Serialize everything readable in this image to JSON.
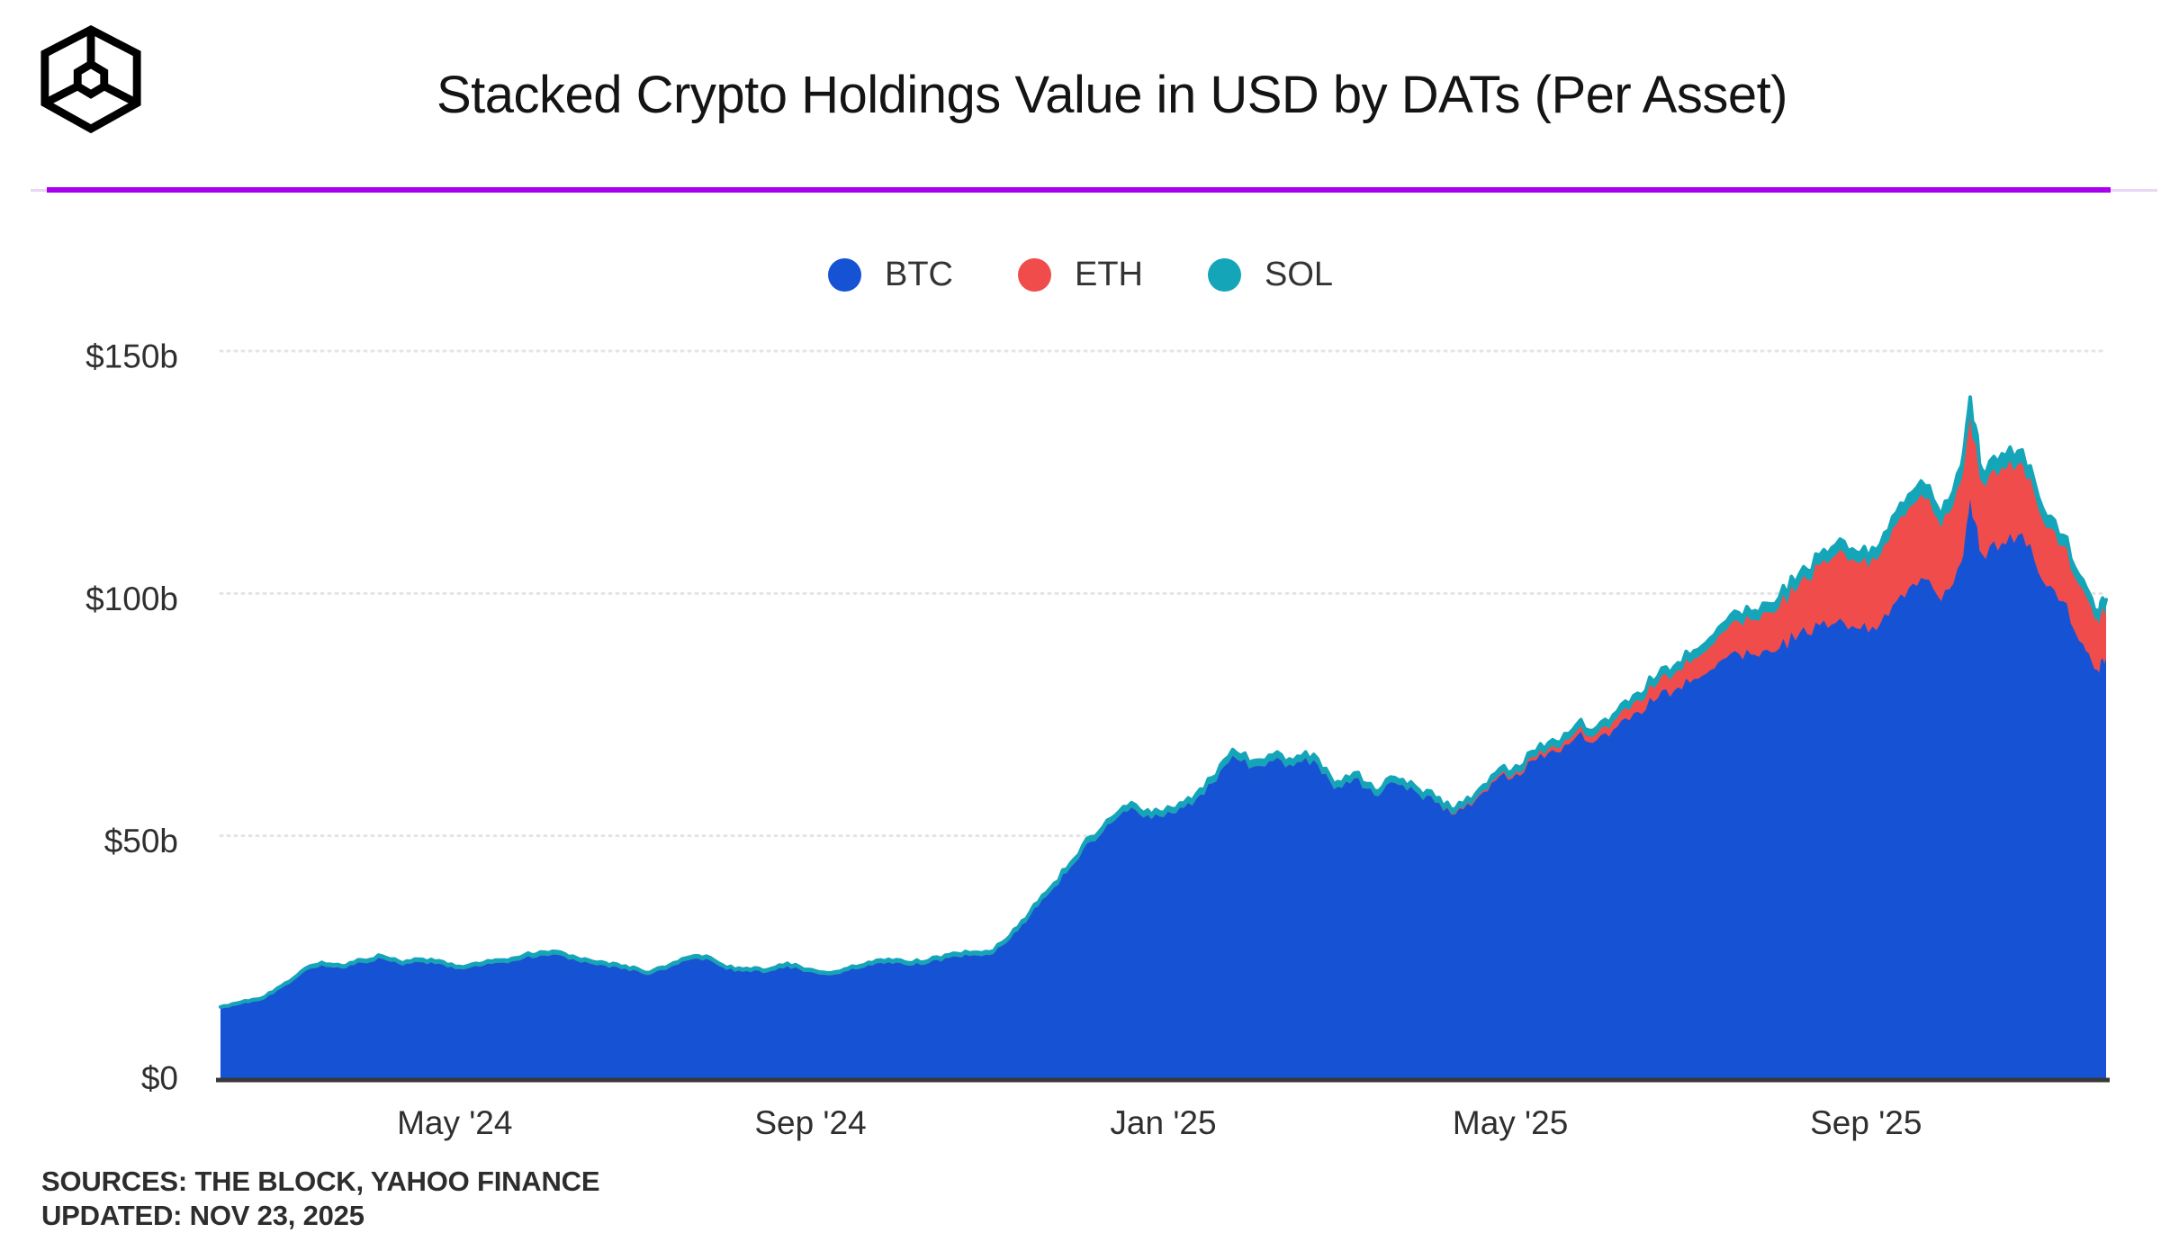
{
  "header": {
    "title": "Stacked Crypto Holdings Value in USD by DATs (Per Asset)",
    "logo": "the-block-logo",
    "rule_color": "#a800ef",
    "rule_light_color": "#e9d7f5"
  },
  "footer": {
    "sources": "SOURCES: THE BLOCK, YAHOO FINANCE",
    "updated": "UPDATED: NOV 23, 2025"
  },
  "chart_data": {
    "type": "area",
    "stacked": true,
    "title": "Stacked Crypto Holdings Value in USD by DATs (Per Asset)",
    "unit": "USD billions",
    "ylim": [
      0,
      150
    ],
    "grid": "horizontal-dotted",
    "legend_position": "top-center",
    "y_ticks": [
      {
        "value": 150,
        "label": "$150b"
      },
      {
        "value": 100,
        "label": "$100b"
      },
      {
        "value": 50,
        "label": "$50b"
      },
      {
        "value": 0,
        "label": "$0"
      }
    ],
    "x_ticks": [
      {
        "date": "2024-05-01",
        "label": "May '24"
      },
      {
        "date": "2024-09-01",
        "label": "Sep '24"
      },
      {
        "date": "2025-01-01",
        "label": "Jan '25"
      },
      {
        "date": "2025-05-01",
        "label": "May '25"
      },
      {
        "date": "2025-09-01",
        "label": "Sep '25"
      }
    ],
    "x": [
      "2024-02-10",
      "2024-02-17",
      "2024-02-24",
      "2024-03-02",
      "2024-03-09",
      "2024-03-16",
      "2024-03-23",
      "2024-03-30",
      "2024-04-06",
      "2024-04-13",
      "2024-04-20",
      "2024-04-27",
      "2024-05-04",
      "2024-05-11",
      "2024-05-18",
      "2024-05-25",
      "2024-06-01",
      "2024-06-08",
      "2024-06-15",
      "2024-06-22",
      "2024-06-29",
      "2024-07-06",
      "2024-07-13",
      "2024-07-20",
      "2024-07-27",
      "2024-08-03",
      "2024-08-10",
      "2024-08-17",
      "2024-08-24",
      "2024-08-31",
      "2024-09-07",
      "2024-09-14",
      "2024-09-21",
      "2024-09-28",
      "2024-10-05",
      "2024-10-12",
      "2024-10-19",
      "2024-10-26",
      "2024-11-02",
      "2024-11-09",
      "2024-11-16",
      "2024-11-23",
      "2024-11-30",
      "2024-12-07",
      "2024-12-14",
      "2024-12-21",
      "2024-12-28",
      "2025-01-04",
      "2025-01-11",
      "2025-01-18",
      "2025-01-25",
      "2025-02-01",
      "2025-02-08",
      "2025-02-15",
      "2025-02-22",
      "2025-03-01",
      "2025-03-08",
      "2025-03-15",
      "2025-03-22",
      "2025-03-29",
      "2025-04-05",
      "2025-04-12",
      "2025-04-19",
      "2025-04-26",
      "2025-05-03",
      "2025-05-10",
      "2025-05-17",
      "2025-05-24",
      "2025-05-31",
      "2025-06-07",
      "2025-06-14",
      "2025-06-21",
      "2025-06-28",
      "2025-07-05",
      "2025-07-12",
      "2025-07-19",
      "2025-07-26",
      "2025-08-02",
      "2025-08-09",
      "2025-08-16",
      "2025-08-23",
      "2025-08-30",
      "2025-09-06",
      "2025-09-13",
      "2025-09-20",
      "2025-09-27",
      "2025-10-04",
      "2025-10-07",
      "2025-10-11",
      "2025-10-18",
      "2025-10-25",
      "2025-11-01",
      "2025-11-08",
      "2025-11-15",
      "2025-11-20",
      "2025-11-23"
    ],
    "series": [
      {
        "name": "BTC",
        "color": "#1653d4",
        "values": [
          14.3,
          15.2,
          16.0,
          18.5,
          21.5,
          23.3,
          22.6,
          23.8,
          24.6,
          23.2,
          23.9,
          23.4,
          22.4,
          23.2,
          23.8,
          24.7,
          25.3,
          25.0,
          24.0,
          23.2,
          22.6,
          21.3,
          22.3,
          24.2,
          24.6,
          22.3,
          22.1,
          21.8,
          23.1,
          21.9,
          21.2,
          22.1,
          23.3,
          23.9,
          23.2,
          23.7,
          24.8,
          25.2,
          25.4,
          28.6,
          33.5,
          38.4,
          43.5,
          48.8,
          52.6,
          55.8,
          53.4,
          54.6,
          56.2,
          60.8,
          66.5,
          64.2,
          65.4,
          64.3,
          65.6,
          59.6,
          61.8,
          58.3,
          60.9,
          59.2,
          56.8,
          54.4,
          57.3,
          61.4,
          62.8,
          65.6,
          67.2,
          70.6,
          69.8,
          72.5,
          75.6,
          78.4,
          80.6,
          82.4,
          85.8,
          87.6,
          86.9,
          88.6,
          91.8,
          93.4,
          94.8,
          92.6,
          93.8,
          99.8,
          103.2,
          98.4,
          106.5,
          119.5,
          108.2,
          110.4,
          112.4,
          102.6,
          98.4,
          89.6,
          84.2,
          86.6
        ]
      },
      {
        "name": "ETH",
        "color": "#f04c4c",
        "values": [
          0,
          0,
          0,
          0,
          0,
          0,
          0,
          0,
          0,
          0,
          0,
          0,
          0,
          0,
          0,
          0,
          0,
          0,
          0,
          0,
          0,
          0,
          0,
          0,
          0,
          0,
          0,
          0,
          0,
          0,
          0,
          0,
          0,
          0,
          0,
          0,
          0,
          0,
          0,
          0,
          0,
          0,
          0,
          0,
          0,
          0,
          0,
          0,
          0,
          0,
          0,
          0,
          0,
          0,
          0,
          0,
          0,
          0,
          0,
          0,
          0,
          0.2,
          0.3,
          0.4,
          0.5,
          0.7,
          0.9,
          1.1,
          1.3,
          1.8,
          2.4,
          3.0,
          3.6,
          4.4,
          5.4,
          6.6,
          7.4,
          8.6,
          10.2,
          12.4,
          14.2,
          13.6,
          14.2,
          16.2,
          17.2,
          15.2,
          16.8,
          17.0,
          14.8,
          15.6,
          14.6,
          12.6,
          11.4,
          11.2,
          10.4,
          10.2
        ]
      },
      {
        "name": "SOL",
        "color": "#15a5b8",
        "values": [
          0.4,
          0.45,
          0.45,
          0.5,
          0.55,
          0.6,
          0.55,
          0.6,
          0.6,
          0.55,
          0.6,
          0.6,
          0.55,
          0.6,
          0.6,
          0.65,
          0.7,
          0.65,
          0.6,
          0.6,
          0.55,
          0.5,
          0.55,
          0.6,
          0.6,
          0.5,
          0.55,
          0.55,
          0.6,
          0.55,
          0.5,
          0.55,
          0.6,
          0.65,
          0.6,
          0.6,
          0.65,
          0.65,
          0.65,
          0.7,
          0.8,
          0.85,
          0.9,
          1.0,
          1.0,
          1.05,
          1.0,
          1.0,
          1.05,
          1.2,
          1.3,
          1.25,
          1.25,
          1.2,
          1.2,
          1.1,
          1.15,
          1.05,
          1.1,
          1.05,
          1.0,
          0.95,
          1.0,
          1.1,
          1.15,
          1.2,
          1.25,
          1.3,
          1.3,
          1.35,
          1.4,
          1.45,
          1.5,
          1.6,
          1.7,
          1.8,
          1.8,
          1.9,
          2.0,
          2.1,
          2.2,
          2.1,
          2.2,
          2.6,
          2.8,
          2.4,
          3.0,
          4.0,
          2.6,
          2.8,
          2.6,
          2.4,
          2.2,
          2.0,
          1.9,
          1.9
        ]
      }
    ],
    "style": {
      "axis_color": "#383838",
      "grid_color": "#e4e4e4",
      "tick_text_color": "#2f2f2f",
      "topline_color": "#15a5b8"
    }
  }
}
